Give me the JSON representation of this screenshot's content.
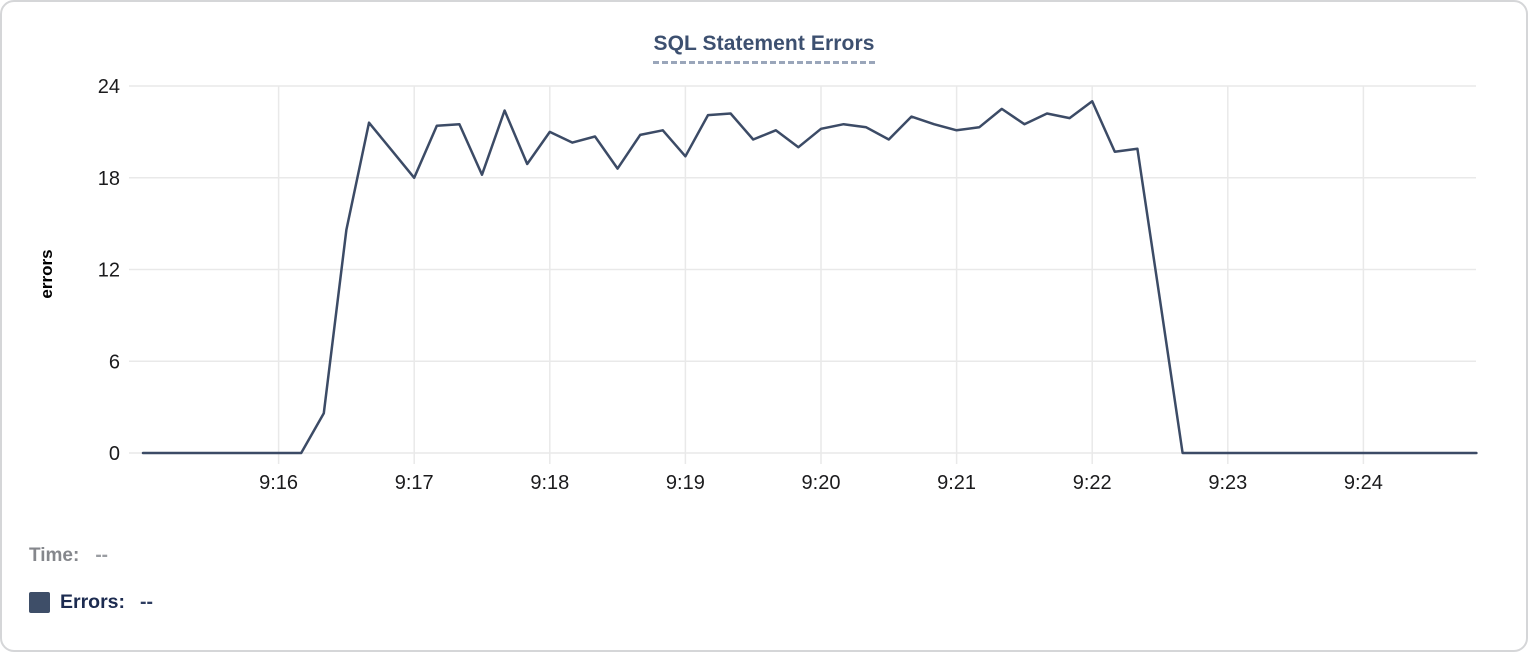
{
  "title": "SQL Statement Errors",
  "chart_data": {
    "type": "line",
    "title": "SQL Statement Errors",
    "xlabel": "",
    "ylabel": "errors",
    "ylim": [
      0,
      24
    ],
    "yticks": [
      24,
      18,
      12,
      6,
      0
    ],
    "xticks": [
      "9:16",
      "9:17",
      "9:18",
      "9:19",
      "9:20",
      "9:21",
      "9:22",
      "9:23",
      "9:24"
    ],
    "grid": true,
    "legend_position": "bottom-left",
    "sample_interval_seconds": 10,
    "x": [
      "9:15:00",
      "9:15:10",
      "9:15:20",
      "9:15:30",
      "9:15:40",
      "9:15:50",
      "9:16:00",
      "9:16:10",
      "9:16:20",
      "9:16:30",
      "9:16:40",
      "9:16:50",
      "9:17:00",
      "9:17:10",
      "9:17:20",
      "9:17:30",
      "9:17:40",
      "9:17:50",
      "9:18:00",
      "9:18:10",
      "9:18:20",
      "9:18:30",
      "9:18:40",
      "9:18:50",
      "9:19:00",
      "9:19:10",
      "9:19:20",
      "9:19:30",
      "9:19:40",
      "9:19:50",
      "9:20:00",
      "9:20:10",
      "9:20:20",
      "9:20:30",
      "9:20:40",
      "9:20:50",
      "9:21:00",
      "9:21:10",
      "9:21:20",
      "9:21:30",
      "9:21:40",
      "9:21:50",
      "9:22:00",
      "9:22:10",
      "9:22:20",
      "9:22:30",
      "9:22:40",
      "9:22:50",
      "9:23:00",
      "9:23:10",
      "9:23:20",
      "9:23:30",
      "9:23:40",
      "9:23:50",
      "9:24:00",
      "9:24:10",
      "9:24:20",
      "9:24:30",
      "9:24:40",
      "9:24:50"
    ],
    "series": [
      {
        "name": "Errors",
        "values": [
          0,
          0,
          0,
          0,
          0,
          0,
          0,
          0,
          2.6,
          14.6,
          21.6,
          19.8,
          18,
          21.4,
          21.5,
          18.2,
          22.4,
          18.9,
          21,
          20.3,
          20.7,
          18.6,
          20.8,
          21.1,
          19.4,
          22.1,
          22.2,
          20.5,
          21.1,
          20,
          21.2,
          21.5,
          21.3,
          20.5,
          22,
          21.5,
          21.1,
          21.3,
          22.5,
          21.5,
          22.2,
          21.9,
          23,
          19.7,
          19.9,
          10,
          0,
          0,
          0,
          0,
          0,
          0,
          0,
          0,
          0,
          0,
          0,
          0,
          0,
          0
        ]
      }
    ]
  },
  "tooltip_readout": {
    "time_label": "Time:",
    "time_value": "--",
    "errors_label": "Errors:",
    "errors_value": "--"
  },
  "colors": {
    "line": "#3c4b66",
    "legend_swatch": "#3e4e68",
    "title_text": "#3d5070",
    "title_underline": "#9aa6ba",
    "grid": "#e9e9e9",
    "tick_label": "#1b1b1d",
    "time_text": "#85878c",
    "errors_text": "#1c2b50",
    "card_border": "#d5d6d8"
  }
}
